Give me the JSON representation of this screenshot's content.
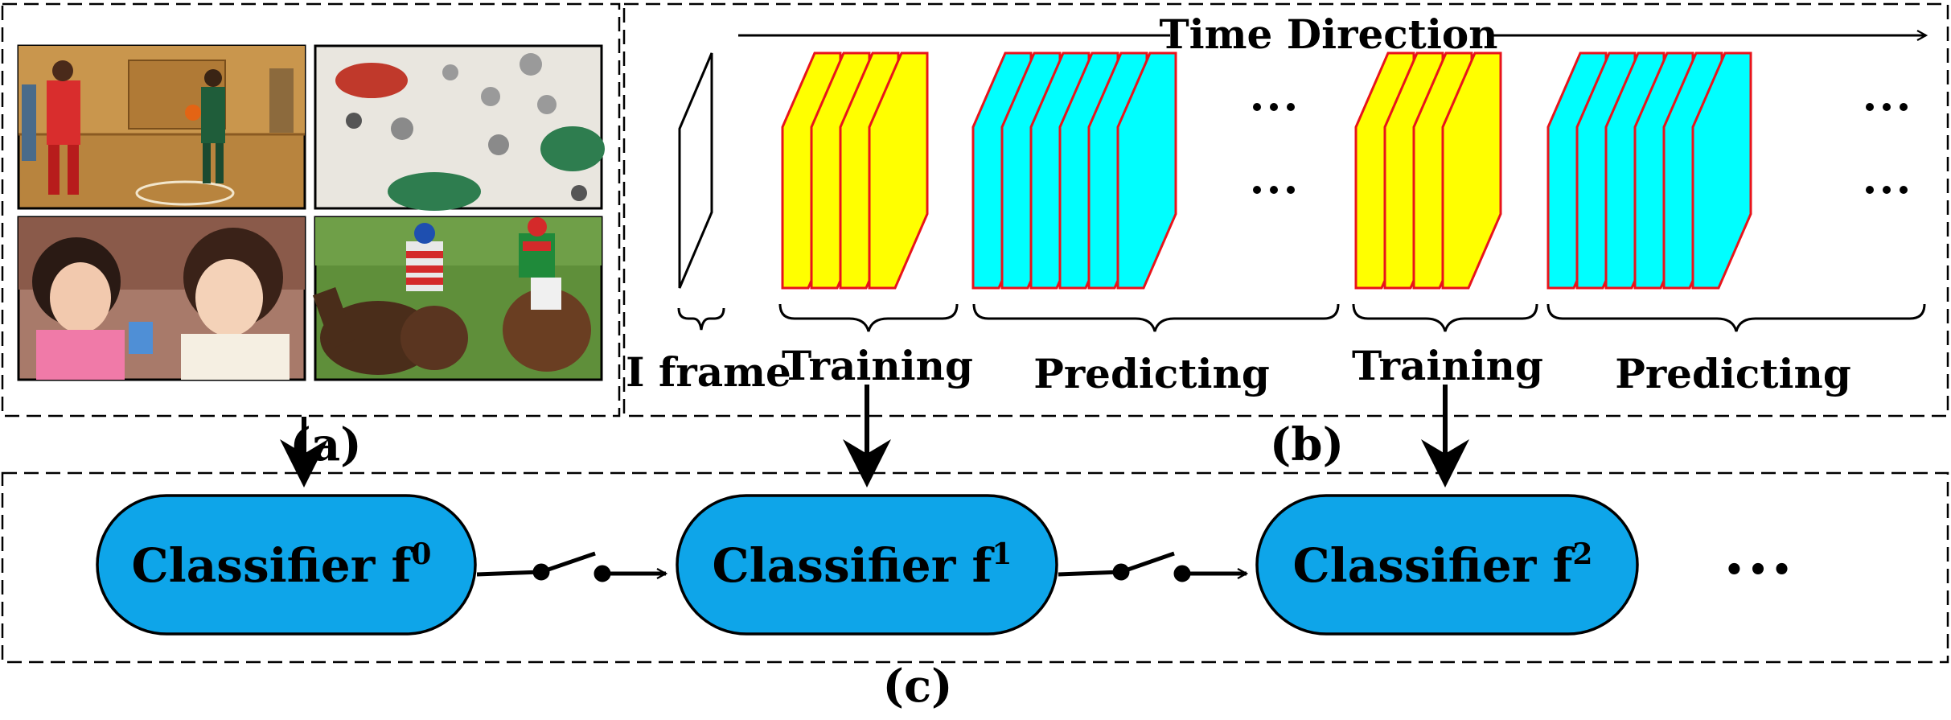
{
  "panel_labels": {
    "a": "(a)",
    "b": "(b)",
    "c": "(c)"
  },
  "time_axis": {
    "label": "Time Direction"
  },
  "iframe_label": "I frame",
  "segments": [
    {
      "label": "Training",
      "kind": "training",
      "frames": 4
    },
    {
      "label": "Predicting",
      "kind": "predicting",
      "frames": 6,
      "ellipsis": true
    },
    {
      "label": "Training",
      "kind": "training",
      "frames": 4
    },
    {
      "label": "Predicting",
      "kind": "predicting",
      "frames": 6,
      "ellipsis": true
    }
  ],
  "frame_colors": {
    "training": "#ffff00",
    "predicting": "#00ffff",
    "edge": "#e8141b"
  },
  "classifiers": [
    {
      "name": "Classifier f",
      "sup": "0"
    },
    {
      "name": "Classifier f",
      "sup": "1"
    },
    {
      "name": "Classifier f",
      "sup": "2"
    }
  ],
  "classifier_fill": "#0ea5e9",
  "trailing_ellipsis": "•••",
  "thumbnails": [
    {
      "scene": "basketball-court-icon"
    },
    {
      "scene": "outdoor-cafe-icon"
    },
    {
      "scene": "children-playing-icon"
    },
    {
      "scene": "horse-racing-icon"
    }
  ]
}
